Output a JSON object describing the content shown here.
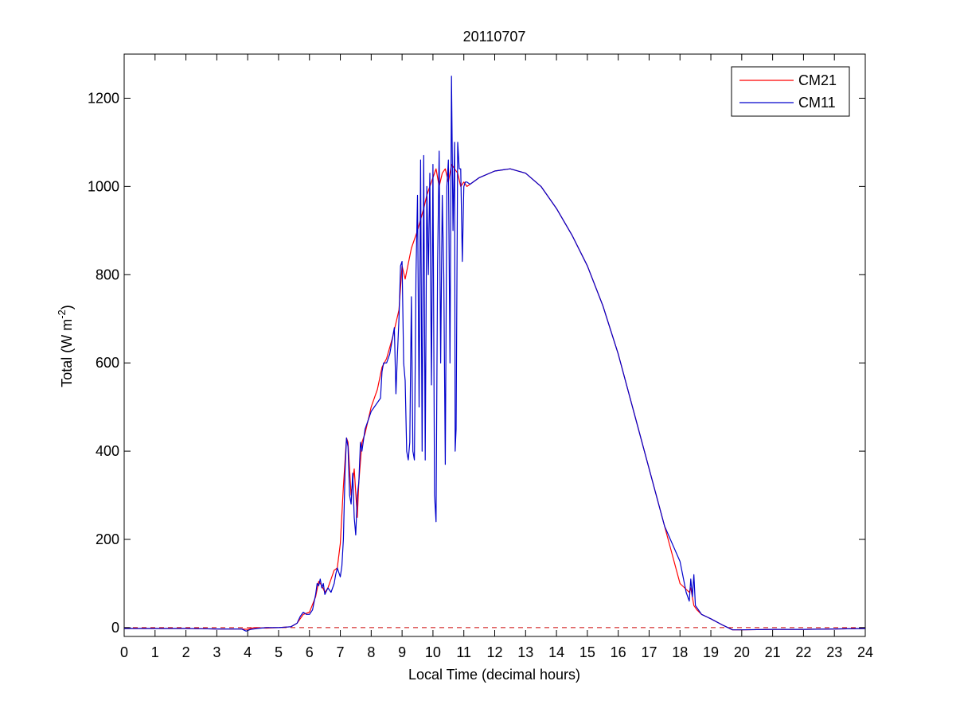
{
  "chart_data": {
    "type": "line",
    "title": "20110707",
    "xlabel": "Local Time (decimal hours)",
    "ylabel": "Total (W m",
    "ylabel_sup": "-2",
    "ylabel_close": ")",
    "xlim": [
      0,
      24
    ],
    "ylim": [
      -20,
      1300
    ],
    "xticks": [
      0,
      1,
      2,
      3,
      4,
      5,
      6,
      7,
      8,
      9,
      10,
      11,
      12,
      13,
      14,
      15,
      16,
      17,
      18,
      19,
      20,
      21,
      22,
      23,
      24
    ],
    "xtick_labels": [
      "0",
      "1",
      "2",
      "3",
      "4",
      "5",
      "6",
      "7",
      "8",
      "9",
      "10",
      "11",
      "12",
      "13",
      "14",
      "15",
      "16",
      "17",
      "18",
      "19",
      "20",
      "21",
      "22",
      "23",
      "24"
    ],
    "yticks": [
      0,
      200,
      400,
      600,
      800,
      1000,
      1200
    ],
    "ytick_labels": [
      "0",
      "200",
      "400",
      "600",
      "800",
      "1000",
      "1200"
    ],
    "grid": false,
    "legend_position": "top-right",
    "reference_line": {
      "y": 0,
      "color": "#cc0000",
      "style": "dashed"
    },
    "series": [
      {
        "name": "CM21",
        "color": "#ff0000",
        "x": [
          0,
          1,
          2,
          3,
          3.8,
          4.0,
          4.2,
          4.6,
          5.0,
          5.4,
          5.6,
          5.8,
          6.0,
          6.2,
          6.3,
          6.4,
          6.5,
          6.6,
          6.7,
          6.8,
          6.9,
          7.0,
          7.1,
          7.2,
          7.25,
          7.35,
          7.45,
          7.55,
          7.6,
          7.7,
          7.8,
          8.0,
          8.2,
          8.35,
          8.5,
          8.7,
          8.9,
          9.0,
          9.1,
          9.3,
          9.5,
          9.7,
          9.8,
          9.9,
          10.0,
          10.1,
          10.2,
          10.3,
          10.4,
          10.5,
          10.6,
          10.7,
          10.8,
          10.9,
          11.0,
          11.1,
          11.5,
          12.0,
          12.5,
          13.0,
          13.5,
          14.0,
          14.5,
          15.0,
          15.5,
          16.0,
          16.5,
          17.0,
          17.5,
          18.0,
          18.3,
          18.35,
          18.45,
          18.55,
          18.7,
          19.0,
          19.4,
          19.7,
          20.0,
          21.0,
          22.0,
          23.0,
          24.0
        ],
        "values": [
          -2,
          -2,
          -2,
          -3,
          -3,
          -4,
          0,
          -1,
          0,
          2,
          10,
          30,
          35,
          70,
          105,
          95,
          80,
          90,
          110,
          130,
          135,
          190,
          320,
          430,
          420,
          300,
          360,
          250,
          330,
          420,
          440,
          500,
          540,
          590,
          610,
          660,
          720,
          820,
          790,
          860,
          900,
          950,
          980,
          1000,
          1020,
          1040,
          1000,
          1030,
          1040,
          1010,
          1050,
          1040,
          1030,
          1000,
          1010,
          1000,
          1020,
          1035,
          1040,
          1030,
          1000,
          950,
          890,
          820,
          730,
          620,
          490,
          360,
          230,
          100,
          80,
          90,
          50,
          40,
          30,
          20,
          5,
          -5,
          -5,
          -4,
          -4,
          -3,
          -2
        ]
      },
      {
        "name": "CM11",
        "color": "#0000cc",
        "x": [
          0,
          1,
          2,
          3,
          3.8,
          3.95,
          4.1,
          4.3,
          4.6,
          5.0,
          5.4,
          5.6,
          5.7,
          5.8,
          5.9,
          6.0,
          6.1,
          6.2,
          6.25,
          6.3,
          6.35,
          6.4,
          6.45,
          6.5,
          6.6,
          6.7,
          6.8,
          6.85,
          6.9,
          7.0,
          7.05,
          7.1,
          7.15,
          7.2,
          7.25,
          7.3,
          7.35,
          7.4,
          7.45,
          7.5,
          7.55,
          7.6,
          7.65,
          7.7,
          7.8,
          7.9,
          8.0,
          8.1,
          8.2,
          8.3,
          8.35,
          8.4,
          8.5,
          8.6,
          8.7,
          8.75,
          8.8,
          8.85,
          8.9,
          8.95,
          9.0,
          9.05,
          9.1,
          9.15,
          9.2,
          9.25,
          9.3,
          9.35,
          9.4,
          9.45,
          9.5,
          9.55,
          9.6,
          9.65,
          9.7,
          9.75,
          9.8,
          9.85,
          9.9,
          9.95,
          10.0,
          10.05,
          10.1,
          10.15,
          10.2,
          10.25,
          10.3,
          10.35,
          10.4,
          10.45,
          10.5,
          10.55,
          10.6,
          10.65,
          10.7,
          10.72,
          10.75,
          10.8,
          10.85,
          10.9,
          10.95,
          11.0,
          11.05,
          11.1,
          11.2,
          11.5,
          12.0,
          12.5,
          13.0,
          13.5,
          14.0,
          14.5,
          15.0,
          15.5,
          16.0,
          16.5,
          17.0,
          17.5,
          18.0,
          18.2,
          18.3,
          18.35,
          18.4,
          18.45,
          18.5,
          18.55,
          18.6,
          18.7,
          19.0,
          19.4,
          19.7,
          20.0,
          21.0,
          22.0,
          23.0,
          24.0
        ],
        "values": [
          -2,
          -2,
          -2,
          -3,
          -3,
          -8,
          -4,
          -2,
          0,
          0,
          2,
          10,
          25,
          35,
          30,
          30,
          40,
          75,
          100,
          95,
          110,
          90,
          100,
          75,
          90,
          80,
          100,
          120,
          135,
          115,
          140,
          200,
          350,
          430,
          410,
          300,
          280,
          350,
          250,
          210,
          300,
          330,
          420,
          400,
          450,
          470,
          490,
          500,
          510,
          520,
          580,
          600,
          600,
          620,
          660,
          680,
          530,
          620,
          700,
          820,
          830,
          600,
          560,
          400,
          380,
          420,
          750,
          400,
          380,
          800,
          980,
          500,
          1060,
          400,
          1070,
          380,
          1000,
          800,
          1030,
          550,
          1050,
          300,
          240,
          820,
          1080,
          600,
          980,
          800,
          370,
          1000,
          1060,
          600,
          1250,
          900,
          1100,
          400,
          450,
          1100,
          1040,
          1040,
          830,
          1000,
          1010,
          1010,
          1005,
          1020,
          1035,
          1040,
          1030,
          1000,
          950,
          890,
          820,
          730,
          620,
          490,
          360,
          230,
          150,
          80,
          60,
          110,
          70,
          120,
          50,
          45,
          40,
          30,
          20,
          5,
          -5,
          -5,
          -4,
          -4,
          -3,
          -2
        ]
      }
    ]
  }
}
